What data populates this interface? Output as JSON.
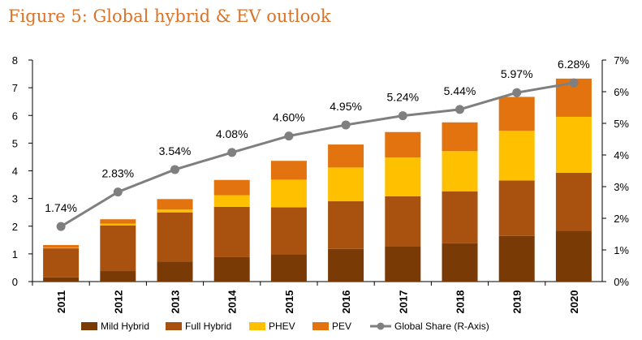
{
  "chart_data": {
    "type": "bar",
    "stacked": true,
    "title": "Figure 5: Global hybrid & EV outlook",
    "categories": [
      "2011",
      "2012",
      "2013",
      "2014",
      "2015",
      "2016",
      "2017",
      "2018",
      "2019",
      "2020"
    ],
    "series": [
      {
        "name": "Mild Hybrid",
        "color": "#7a3a06",
        "values": [
          0.15,
          0.38,
          0.72,
          0.88,
          0.98,
          1.18,
          1.28,
          1.38,
          1.65,
          1.83
        ]
      },
      {
        "name": "Full Hybrid",
        "color": "#a9520f",
        "values": [
          1.05,
          1.65,
          1.78,
          1.82,
          1.7,
          1.72,
          1.8,
          1.88,
          2.0,
          2.1
        ]
      },
      {
        "name": "PHEV",
        "color": "#ffc000",
        "values": [
          0.02,
          0.06,
          0.1,
          0.42,
          1.0,
          1.22,
          1.4,
          1.45,
          1.8,
          2.02
        ]
      },
      {
        "name": "PEV",
        "color": "#e2730f",
        "values": [
          0.1,
          0.16,
          0.38,
          0.55,
          0.68,
          0.83,
          0.92,
          1.04,
          1.22,
          1.38
        ]
      }
    ],
    "line_series": {
      "name": "Global Share (R-Axis)",
      "color": "#7f7f7f",
      "values": [
        1.74,
        2.83,
        3.54,
        4.08,
        4.6,
        4.95,
        5.24,
        5.44,
        5.97,
        6.28
      ],
      "labels": [
        "1.74%",
        "2.83%",
        "3.54%",
        "4.08%",
        "4.60%",
        "4.95%",
        "5.24%",
        "5.44%",
        "5.97%",
        "6.28%"
      ]
    },
    "left_axis": {
      "ylim": [
        0,
        8
      ],
      "ticks": [
        "0",
        "1",
        "2",
        "3",
        "4",
        "5",
        "6",
        "7",
        "8"
      ]
    },
    "right_axis": {
      "ylim": [
        0,
        7
      ],
      "ticks": [
        "0%",
        "1%",
        "2%",
        "3%",
        "4%",
        "5%",
        "6%",
        "7%"
      ]
    },
    "legend": [
      "Mild Hybrid",
      "Full Hybrid",
      "PHEV",
      "PEV",
      "Global Share (R-Axis)"
    ]
  }
}
